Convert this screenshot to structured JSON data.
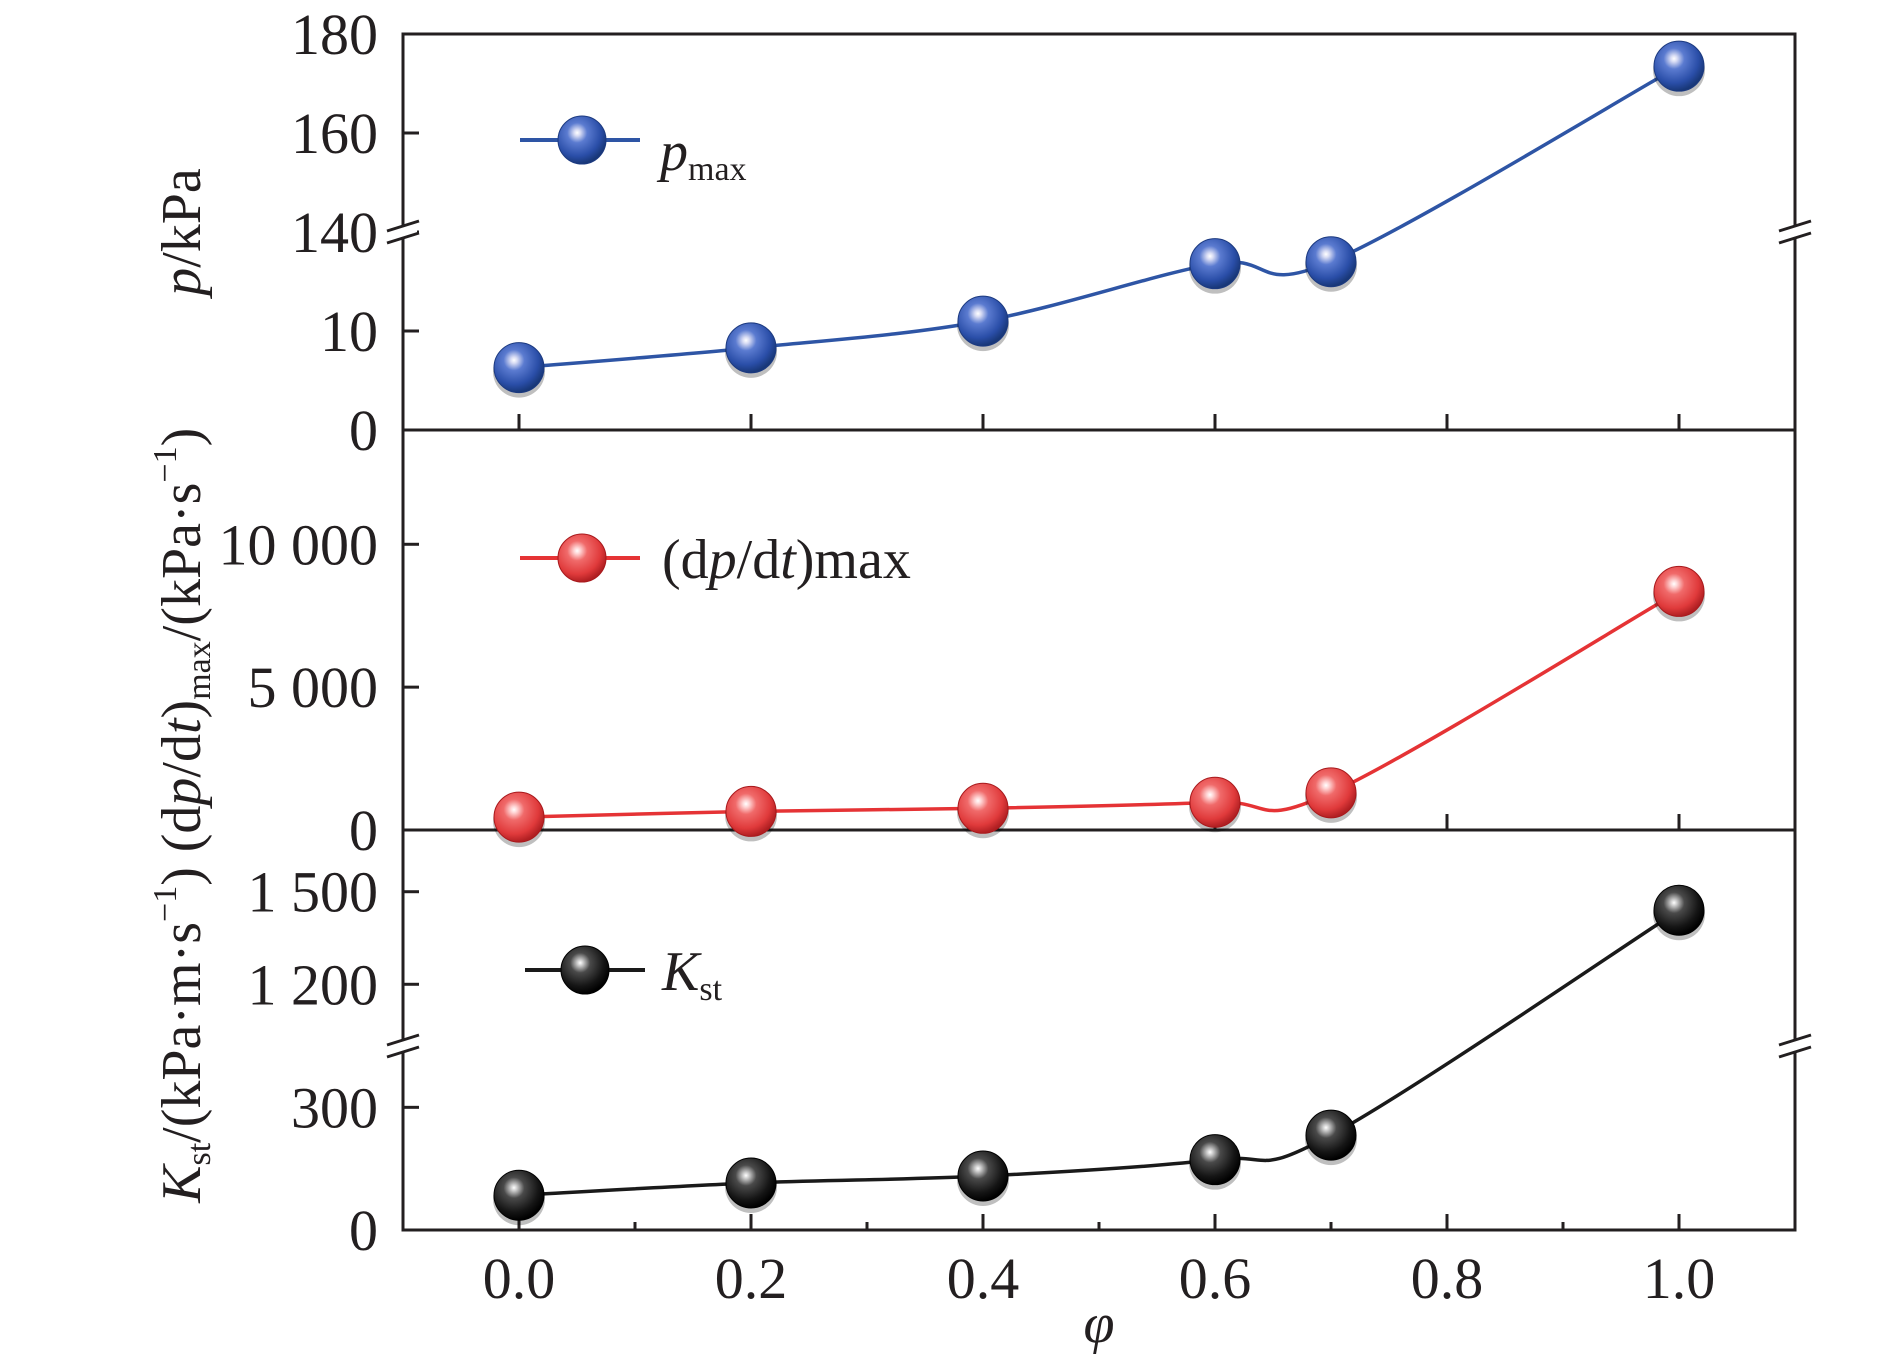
{
  "chart_data": {
    "type": "line",
    "xlabel": "φ",
    "x_tick_labels": [
      "0.0",
      "0.2",
      "0.4",
      "0.6",
      "0.8",
      "1.0"
    ],
    "xlim": [
      -0.1,
      1.1
    ],
    "panels": [
      {
        "id": "top",
        "ylabel": {
          "main": "p",
          "unit": "/kPa"
        },
        "y_broken_axis": true,
        "y_segments": [
          {
            "range": [
              0,
              20
            ],
            "ticks": [
              0,
              10
            ],
            "tick_labels": [
              "0",
              "10"
            ]
          },
          {
            "range": [
              140,
              180
            ],
            "ticks": [
              140,
              160,
              180
            ],
            "tick_labels": [
              "140",
              "160",
              "180"
            ]
          }
        ],
        "series": {
          "name": "pmax",
          "legend": {
            "main": "p",
            "sub": "max"
          },
          "color": "#2e55a5",
          "x": [
            0.0,
            0.2,
            0.4,
            0.6,
            0.7,
            1.0
          ],
          "y": [
            6.3,
            8.3,
            11.0,
            16.8,
            17.0,
            173.5
          ]
        }
      },
      {
        "id": "middle",
        "ylabel": {
          "pre": "(dp/dt)",
          "sub": "max",
          "post": "/(kPa·s",
          "sup": "−1",
          "end": ")"
        },
        "ylim": [
          0,
          14000
        ],
        "ticks": [
          0,
          5000,
          10000
        ],
        "tick_labels": [
          "0",
          "5 000",
          "10 000"
        ],
        "series": {
          "name": "(dp/dt)max",
          "legend": "(dp/dt)max",
          "color": "#e53335",
          "x": [
            0.0,
            0.2,
            0.4,
            0.6,
            0.7,
            1.0
          ],
          "y": [
            450,
            650,
            760,
            970,
            1300,
            8350
          ]
        }
      },
      {
        "id": "bottom",
        "ylabel": {
          "pre": "K",
          "sub": "st",
          "post": "/(kPa·m·s",
          "sup": "−1",
          "end": ")"
        },
        "y_broken_axis": true,
        "y_segments": [
          {
            "range": [
              0,
              450
            ],
            "ticks": [
              0,
              300
            ],
            "tick_labels": [
              "0",
              "300"
            ]
          },
          {
            "range": [
              1000,
              1700
            ],
            "ticks": [
              1200,
              1500
            ],
            "tick_labels": [
              "1 200",
              "1 500"
            ]
          }
        ],
        "series": {
          "name": "Kst",
          "legend": {
            "main": "K",
            "sub": "st"
          },
          "color": "#1a1a1a",
          "x": [
            0.0,
            0.2,
            0.4,
            0.6,
            0.7,
            1.0
          ],
          "y": [
            85,
            115,
            132,
            172,
            232,
            1440
          ]
        }
      }
    ]
  }
}
